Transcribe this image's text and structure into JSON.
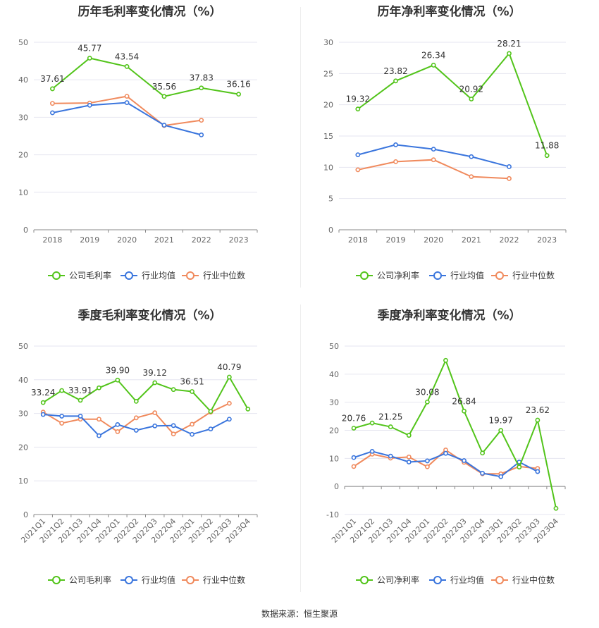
{
  "source_text": "数据来源：恒生聚源",
  "colors": {
    "company": "#52c41a",
    "industry_avg": "#3a75dd",
    "industry_median": "#f08a5d",
    "grid": "#e6e6f0",
    "axis": "#888888"
  },
  "chart_data": [
    {
      "type": "line",
      "title": "历年毛利率变化情况（%）",
      "x": [
        "2018",
        "2019",
        "2020",
        "2021",
        "2022",
        "2023"
      ],
      "ylim": [
        0,
        50
      ],
      "yticks": [
        0,
        10,
        20,
        30,
        40,
        50
      ],
      "grid": true,
      "legend_position": "bottom",
      "series": [
        {
          "name": "公司毛利率",
          "values": [
            37.61,
            45.77,
            43.54,
            35.56,
            37.83,
            36.16
          ],
          "labels": [
            "37.61",
            "45.77",
            "43.54",
            "35.56",
            "37.83",
            "36.16"
          ]
        },
        {
          "name": "行业均值",
          "values": [
            31.2,
            33.2,
            33.9,
            27.9,
            25.3,
            null
          ]
        },
        {
          "name": "行业中位数",
          "values": [
            33.7,
            33.8,
            35.6,
            27.8,
            29.2,
            null
          ]
        }
      ]
    },
    {
      "type": "line",
      "title": "历年净利率变化情况（%）",
      "x": [
        "2018",
        "2019",
        "2020",
        "2021",
        "2022",
        "2023"
      ],
      "ylim": [
        0,
        30
      ],
      "yticks": [
        0,
        5,
        10,
        15,
        20,
        25,
        30
      ],
      "grid": true,
      "legend_position": "bottom",
      "series": [
        {
          "name": "公司净利率",
          "values": [
            19.32,
            23.82,
            26.34,
            20.92,
            28.21,
            11.88
          ],
          "labels": [
            "19.32",
            "23.82",
            "26.34",
            "20.92",
            "28.21",
            "11.88"
          ]
        },
        {
          "name": "行业均值",
          "values": [
            12.0,
            13.6,
            12.9,
            11.7,
            10.1,
            null
          ]
        },
        {
          "name": "行业中位数",
          "values": [
            9.6,
            10.9,
            11.2,
            8.5,
            8.2,
            null
          ]
        }
      ]
    },
    {
      "type": "line",
      "title": "季度毛利率变化情况（%）",
      "x": [
        "2021Q1",
        "2021Q2",
        "2021Q3",
        "2021Q4",
        "2022Q1",
        "2022Q2",
        "2022Q3",
        "2022Q4",
        "2023Q1",
        "2023Q2",
        "2023Q3",
        "2023Q4"
      ],
      "ylim": [
        0,
        50
      ],
      "yticks": [
        0,
        10,
        20,
        30,
        40,
        50
      ],
      "grid": true,
      "legend_position": "bottom",
      "series": [
        {
          "name": "公司毛利率",
          "values": [
            33.24,
            36.8,
            33.91,
            37.6,
            39.9,
            33.6,
            39.12,
            37.1,
            36.51,
            30.6,
            40.79,
            31.3
          ],
          "labels": [
            "33.24",
            "",
            "33.91",
            "",
            "39.90",
            "",
            "39.12",
            "",
            "36.51",
            "",
            "40.79",
            ""
          ]
        },
        {
          "name": "行业均值",
          "values": [
            29.7,
            29.2,
            29.2,
            23.4,
            26.7,
            25.0,
            26.3,
            26.4,
            23.8,
            25.4,
            28.3,
            null
          ]
        },
        {
          "name": "行业中位数",
          "values": [
            30.4,
            27.1,
            28.3,
            28.3,
            24.6,
            28.7,
            30.2,
            23.9,
            26.8,
            30.4,
            33.0,
            null
          ]
        }
      ]
    },
    {
      "type": "line",
      "title": "季度净利率变化情况（%）",
      "x": [
        "2021Q1",
        "2021Q2",
        "2021Q3",
        "2021Q4",
        "2022Q1",
        "2022Q2",
        "2022Q3",
        "2022Q4",
        "2023Q1",
        "2023Q2",
        "2023Q3",
        "2023Q4"
      ],
      "ylim": [
        -10,
        50
      ],
      "yticks": [
        -10,
        0,
        10,
        20,
        30,
        40,
        50
      ],
      "grid": true,
      "legend_position": "bottom",
      "series": [
        {
          "name": "公司净利率",
          "values": [
            20.76,
            22.6,
            21.25,
            18.2,
            30.08,
            44.9,
            26.84,
            11.9,
            19.97,
            6.9,
            23.62,
            -7.8
          ],
          "labels": [
            "20.76",
            "",
            "21.25",
            "",
            "30.08",
            "",
            "26.84",
            "",
            "19.97",
            "",
            "23.62",
            ""
          ]
        },
        {
          "name": "行业均值",
          "values": [
            10.3,
            12.5,
            10.8,
            8.7,
            9.1,
            11.8,
            9.2,
            4.7,
            3.5,
            8.7,
            5.3,
            null
          ]
        },
        {
          "name": "行业中位数",
          "values": [
            7.1,
            11.5,
            10.1,
            10.5,
            7.0,
            13.0,
            8.6,
            4.5,
            4.5,
            7.1,
            6.4,
            null
          ]
        }
      ]
    }
  ]
}
